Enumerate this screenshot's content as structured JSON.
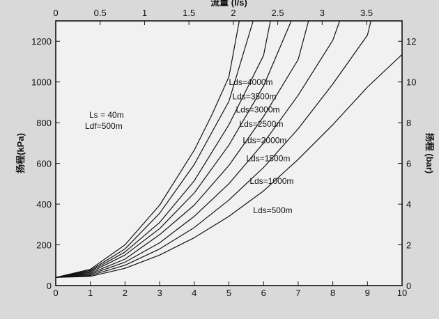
{
  "chart_data": {
    "type": "line",
    "title": "",
    "xlabel": "",
    "xlim": [
      0,
      10
    ],
    "x_ticks": [
      "0",
      "1",
      "2",
      "3",
      "4",
      "5",
      "6",
      "7",
      "8",
      "9",
      "10"
    ],
    "x2label": "流量 (l/s)",
    "x2lim": [
      0,
      3.9
    ],
    "x2_ticks": [
      "0",
      "0.5",
      "1",
      "1.5",
      "2",
      "2.5",
      "3",
      "3.5"
    ],
    "ylabel": "扬程(kPa)",
    "ylim": [
      0,
      1300
    ],
    "y_ticks": [
      "0",
      "200",
      "400",
      "600",
      "800",
      "1000",
      "1200"
    ],
    "y2label": "扬程 (bar)",
    "y2lim": [
      0,
      13
    ],
    "y2_ticks": [
      "0",
      "2",
      "4",
      "6",
      "8",
      "10",
      "12"
    ],
    "grid": false,
    "annotations": [
      "Ls = 40m",
      "Ldf=500m"
    ],
    "series": [
      {
        "name": "Lds=4000m",
        "x": [
          0,
          1,
          2,
          3,
          4,
          4.5,
          5,
          5.3
        ],
        "y": [
          40,
          80,
          200,
          395,
          665,
          835,
          1025,
          1300
        ]
      },
      {
        "name": "Lds=3500m",
        "x": [
          0,
          1,
          2,
          3,
          4,
          5,
          5.7
        ],
        "y": [
          40,
          75,
          180,
          355,
          595,
          905,
          1300
        ]
      },
      {
        "name": "Lds=3000m",
        "x": [
          0,
          1,
          2,
          3,
          4,
          5,
          6,
          6.2
        ],
        "y": [
          40,
          70,
          165,
          310,
          515,
          790,
          1130,
          1300
        ]
      },
      {
        "name": "Lds=2500m",
        "x": [
          0,
          1,
          2,
          3,
          4,
          5,
          6,
          6.8
        ],
        "y": [
          40,
          65,
          150,
          280,
          455,
          690,
          980,
          1300
        ]
      },
      {
        "name": "Lds=2000m",
        "x": [
          0,
          1,
          2,
          3,
          4,
          5,
          6,
          7,
          7.3
        ],
        "y": [
          40,
          60,
          130,
          250,
          395,
          590,
          830,
          1110,
          1300
        ]
      },
      {
        "name": "Lds=1500m",
        "x": [
          0,
          1,
          2,
          3,
          4,
          5,
          6,
          7,
          8,
          8.2
        ],
        "y": [
          40,
          55,
          115,
          210,
          340,
          500,
          700,
          935,
          1205,
          1300
        ]
      },
      {
        "name": "Lds=1000m",
        "x": [
          0,
          1,
          2,
          3,
          4,
          5,
          6,
          7,
          8,
          9,
          9.1
        ],
        "y": [
          40,
          50,
          100,
          180,
          285,
          420,
          580,
          770,
          990,
          1230,
          1300
        ]
      },
      {
        "name": "Lds=500m",
        "x": [
          0,
          1,
          2,
          3,
          4,
          5,
          6,
          7,
          8,
          9,
          10
        ],
        "y": [
          40,
          45,
          85,
          150,
          235,
          340,
          465,
          620,
          790,
          975,
          1135
        ]
      }
    ],
    "curve_labels": [
      "Lds=4000m",
      "Lds=3500m",
      "Lds=3000m",
      "Lds=2500m",
      "Lds=2000m",
      "Lds=1500m",
      "Lds=1000m",
      "Lds=500m"
    ],
    "curve_label_at": [
      [
        5.0,
        985
      ],
      [
        5.1,
        915
      ],
      [
        5.2,
        850
      ],
      [
        5.3,
        780
      ],
      [
        5.4,
        700
      ],
      [
        5.5,
        610
      ],
      [
        5.6,
        500
      ],
      [
        5.7,
        355
      ]
    ]
  }
}
